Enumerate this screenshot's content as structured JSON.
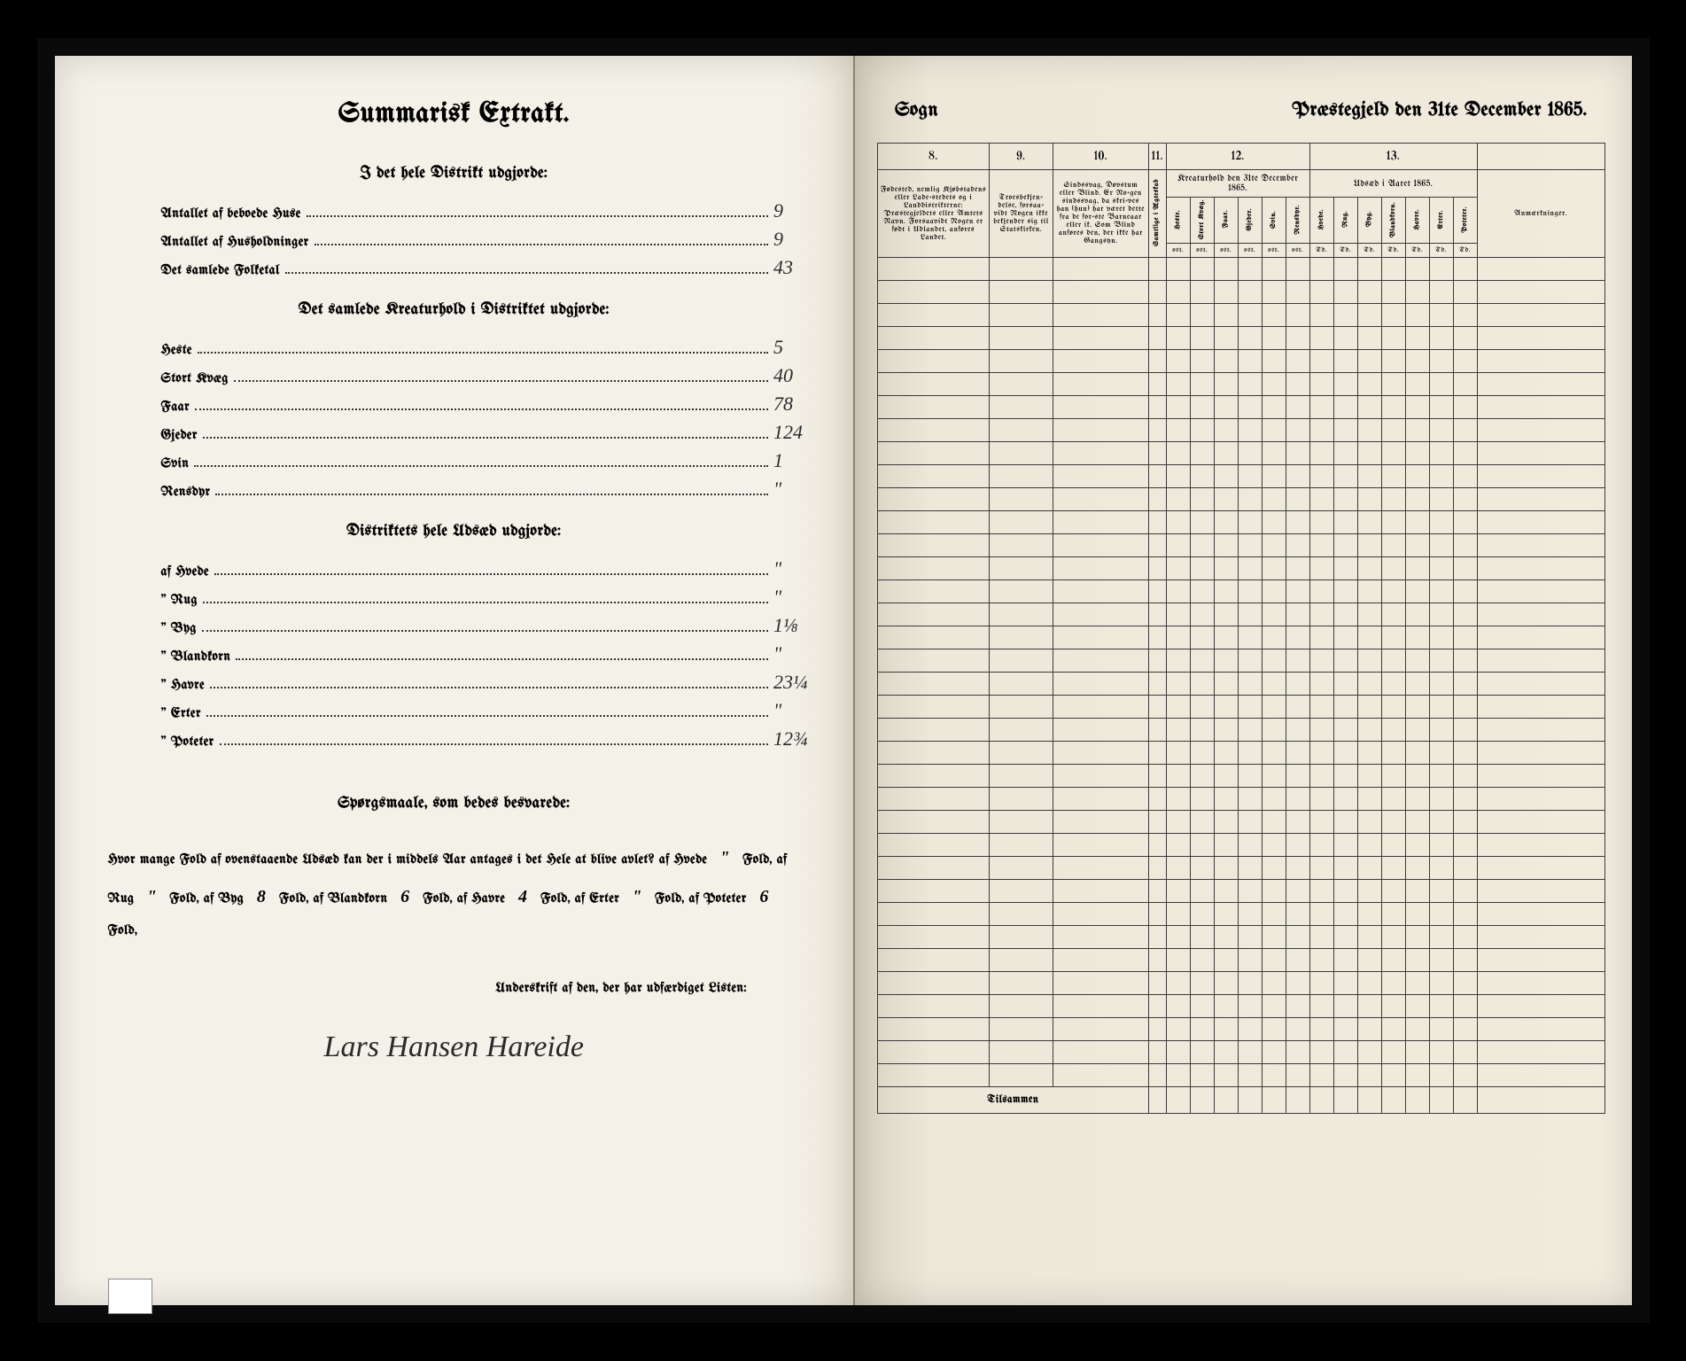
{
  "leftPage": {
    "title": "Summarisk Extrakt.",
    "section1": {
      "heading": "I det hele Distrikt udgjorde:",
      "items": [
        {
          "label": "Antallet af beboede Huse",
          "value": "9"
        },
        {
          "label": "Antallet af Husholdninger",
          "value": "9"
        },
        {
          "label": "Det samlede Folketal",
          "value": "43"
        }
      ]
    },
    "section2": {
      "heading": "Det samlede Kreaturhold i Distriktet udgjorde:",
      "items": [
        {
          "label": "Heste",
          "value": "5"
        },
        {
          "label": "Stort Kvæg",
          "value": "40"
        },
        {
          "label": "Faar",
          "value": "78"
        },
        {
          "label": "Gjeder",
          "value": "124"
        },
        {
          "label": "Svin",
          "value": "1"
        },
        {
          "label": "Rensdyr",
          "value": "\""
        }
      ]
    },
    "section3": {
      "heading": "Distriktets hele Udsæd udgjorde:",
      "items": [
        {
          "label": "af Hvede",
          "value": "\""
        },
        {
          "label": "\" Rug",
          "value": "\""
        },
        {
          "label": "\" Byg",
          "value": "1⅛"
        },
        {
          "label": "\" Blandkorn",
          "value": "\""
        },
        {
          "label": "\" Havre",
          "value": "23¼"
        },
        {
          "label": "\" Erter",
          "value": "\""
        },
        {
          "label": "\" Poteter",
          "value": "12¾"
        }
      ]
    },
    "questions": {
      "heading": "Spørgsmaale, som bedes besvarede:",
      "text_prefix": "Hvor mange Fold af ovenstaaende Udsæd kan der i middels Aar antages i det Hele at blive avlet?",
      "folds": [
        {
          "crop": "af Hvede",
          "value": "\""
        },
        {
          "crop": "af Rug",
          "value": "\""
        },
        {
          "crop": "af Byg",
          "value": "8"
        },
        {
          "crop": "af Blandkorn",
          "value": "6"
        },
        {
          "crop": "af Havre",
          "value": "4"
        },
        {
          "crop": "af Erter",
          "value": "\""
        },
        {
          "crop": "af Poteter",
          "value": "6"
        }
      ],
      "fold_word": "Fold,"
    },
    "underskrift_label": "Underskrift af den, der har udfærdiget Listen:",
    "signature": "Lars Hansen Hareide"
  },
  "rightPage": {
    "sogn_label": "Sogn",
    "header_text": "Præstegjeld den 31te December 1865.",
    "columns": {
      "numbers": [
        "8.",
        "9.",
        "10.",
        "11.",
        "12.",
        "13.",
        ""
      ],
      "col8": "Fødested, nemlig Kjøbstadens eller Lade-stedets og i Landdistrikterne: Præstegjeldets eller Amtets Navn. Forsaavidt Nogen er født i Udlandet, anføres Landet.",
      "col9": "Troesbekjen-delse, forsaa-vidt Nogen ikke bekjender sig til Statskirken.",
      "col10": "Sindssvag, Døvstum eller Blind. Er No-gen sindssvag, da skri-ves han (hun) har været dette fra de for-ste Barneaar eller ik. Som Blind anføres den, der ikke har Gangsyn.",
      "col11_vert": "Samtlige i Ægteskab",
      "col12_header": "Kreaturhold den 31te December 1865.",
      "col12_sub": [
        "Heste.",
        "Stort Kvæg.",
        "Faar.",
        "Gjeder.",
        "Svin.",
        "Rensdyr."
      ],
      "col13_header": "Udsæd i Aaret 1865.",
      "col13_sub": [
        "Hvede.",
        "Rug.",
        "Byg.",
        "Blandkorn.",
        "Havre.",
        "Erter.",
        "Poteter."
      ],
      "remarks": "Anmærkninger.",
      "unit_row": [
        "ost.",
        "ost.",
        "ost.",
        "ost.",
        "ost.",
        "ost.",
        "Td.",
        "Td.",
        "Td.",
        "Td.",
        "Td.",
        "Td.",
        "Td."
      ]
    },
    "num_rows": 36,
    "footer_label": "Tilsammen"
  },
  "colors": {
    "page_bg": "#f0ebdd",
    "ink": "#2a2a2a",
    "border": "#3a3a3a"
  }
}
